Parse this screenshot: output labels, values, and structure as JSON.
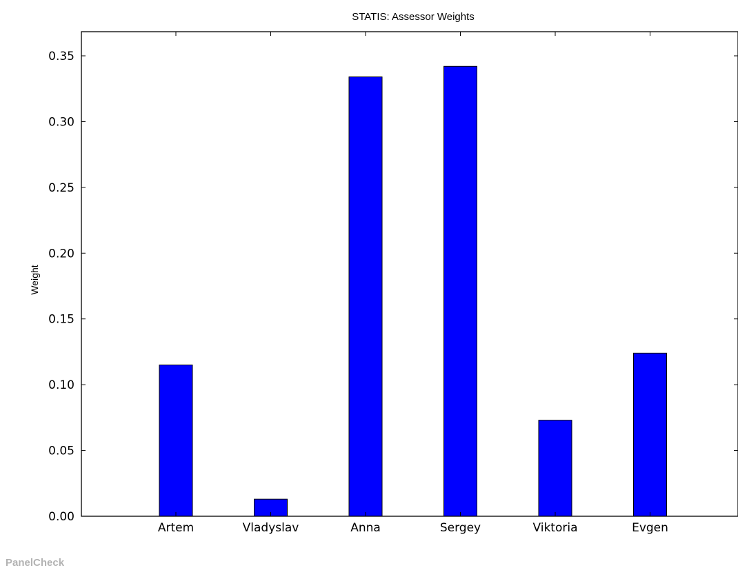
{
  "chart_data": {
    "type": "bar",
    "title": "STATIS: Assessor Weights",
    "xlabel": "",
    "ylabel": "Weight",
    "categories": [
      "Artem",
      "Vladyslav",
      "Anna",
      "Sergey",
      "Viktoria",
      "Evgen"
    ],
    "values": [
      0.115,
      0.013,
      0.334,
      0.342,
      0.073,
      0.124
    ],
    "ylim": [
      0.0,
      0.35
    ],
    "yticks": [
      0.0,
      0.05,
      0.1,
      0.15,
      0.2,
      0.25,
      0.3,
      0.35
    ],
    "ytick_labels": [
      "0.00",
      "0.05",
      "0.10",
      "0.15",
      "0.20",
      "0.25",
      "0.30",
      "0.35"
    ],
    "bar_color": "#0000ff",
    "bar_edge_color": "#000000",
    "grid": false,
    "legend": "none"
  },
  "watermark": "PanelCheck"
}
